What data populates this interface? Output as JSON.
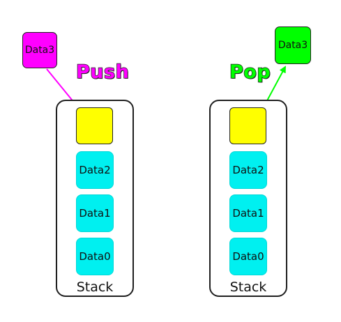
{
  "colors": {
    "push": "#ff00ff",
    "pop": "#00ff00",
    "top_slot": "#ffff00",
    "stack_item": "#00f0f0",
    "outline": "#1f1f1f"
  },
  "push": {
    "title": "Push",
    "incoming_label": "Data3",
    "stack": {
      "label": "Stack",
      "items": [
        "Data2",
        "Data1",
        "Data0"
      ]
    }
  },
  "pop": {
    "title": "Pop",
    "outgoing_label": "Data3",
    "stack": {
      "label": "Stack",
      "items": [
        "Data2",
        "Data1",
        "Data0"
      ]
    }
  }
}
